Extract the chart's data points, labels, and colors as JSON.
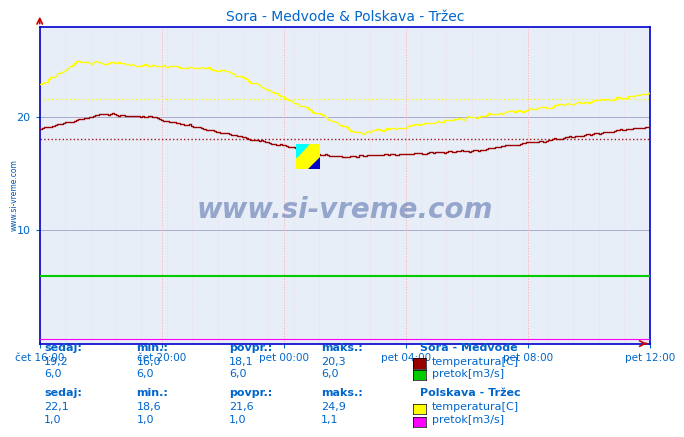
{
  "title": "Sora - Medvode & Polskava - Tržec",
  "bg_color": "#ffffff",
  "plot_bg_color": "#e8eef8",
  "fig_width": 6.59,
  "fig_height": 4.66,
  "ylim": [
    0,
    28
  ],
  "yticks": [
    10,
    20
  ],
  "xlabel_ticks": [
    "čet 16:00",
    "čet 20:00",
    "pet 00:00",
    "pet 04:00",
    "pet 08:00",
    "pet 12:00"
  ],
  "n_points": 288,
  "sora_temp_avg": 18.1,
  "polskava_temp_avg": 21.6,
  "sora_color": "#990000",
  "polskava_color": "#ffff00",
  "sora_pretok_color": "#00cc00",
  "polskava_pretok_color": "#ff00ff",
  "text_color": "#0066cc",
  "spine_color": "#0000cc",
  "grid_h_color": "#aaaacc",
  "grid_v_color": "#ffaaaa",
  "watermark": "www.si-vreme.com",
  "station1_name": "Sora - Medvode",
  "station2_name": "Polskava - Tržec",
  "sedaj1": "19,2",
  "min1": "16,0",
  "povpr1": "18,1",
  "maks1": "20,3",
  "sedaj1_pretok": "6,0",
  "min1_pretok": "6,0",
  "povpr1_pretok": "6,0",
  "maks1_pretok": "6,0",
  "sedaj2": "22,1",
  "min2": "18,6",
  "povpr2": "21,6",
  "maks2": "24,9",
  "sedaj2_pretok": "1,0",
  "min2_pretok": "1,0",
  "povpr2_pretok": "1,0",
  "maks2_pretok": "1,1"
}
